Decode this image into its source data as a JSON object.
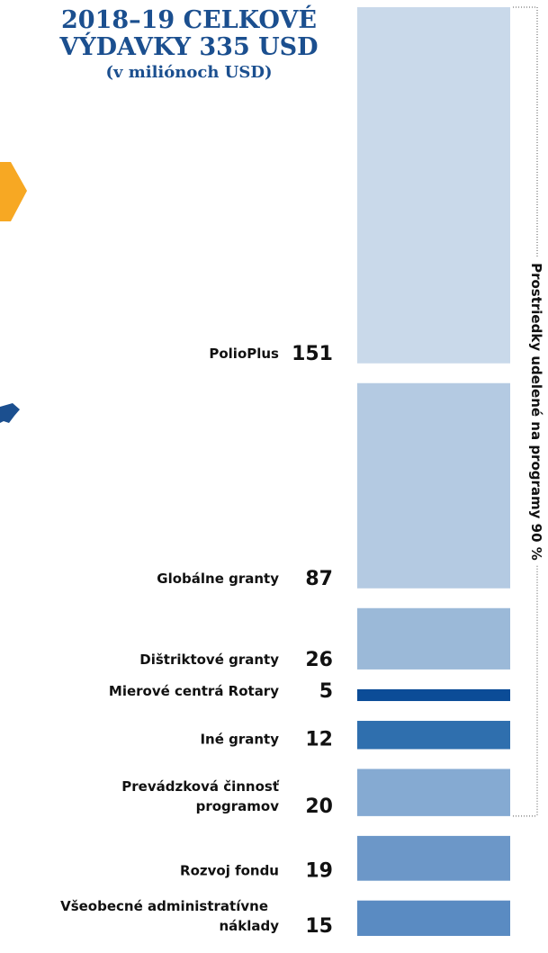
{
  "chart_data": {
    "type": "stacked-column",
    "title": "2018–19 CELKOVÉ VÝDAVKY 335 USD",
    "subtitle": "(v miliónoch USD)",
    "categories": [
      "PolioPlus",
      "Globálne granty",
      "Dištriktové granty",
      "Mierové centrá Rotary",
      "Iné granty",
      "Prevádzková činnosť programov",
      "Rozvoj fondu",
      "Všeobecné administratívne náklady"
    ],
    "values": [
      151,
      87,
      26,
      5,
      12,
      20,
      19,
      15
    ],
    "colors": [
      "#c9d9ea",
      "#b4cae2",
      "#9bb9d8",
      "#0b4c97",
      "#2f6fae",
      "#85aad2",
      "#6c97c8",
      "#5a8bc2"
    ],
    "bracket_label": "Prostriedky udelené na programy 90 %"
  }
}
